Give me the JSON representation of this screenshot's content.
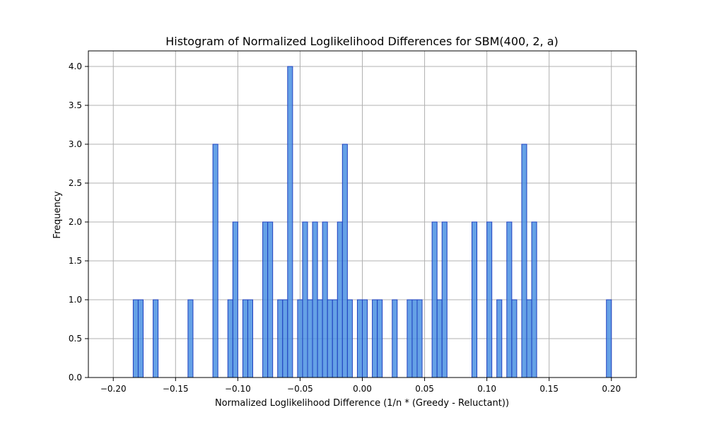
{
  "chart_data": {
    "type": "bar",
    "title": "Histogram of Normalized Loglikelihood Differences for SBM(400, 2, a)",
    "xlabel": "Normalized Loglikelihood Difference (1/n * (Greedy - Reluctant))",
    "ylabel": "Frequency",
    "xlim": [
      -0.22,
      0.22
    ],
    "ylim": [
      0,
      4.2
    ],
    "x_ticks": [
      -0.2,
      -0.15,
      -0.1,
      -0.05,
      0.0,
      0.05,
      0.1,
      0.15,
      0.2
    ],
    "x_tick_labels": [
      "−0.20",
      "−0.15",
      "−0.10",
      "−0.05",
      "0.00",
      "0.05",
      "0.10",
      "0.15",
      "0.20"
    ],
    "y_ticks": [
      0,
      0.5,
      1,
      1.5,
      2,
      2.5,
      3,
      3.5,
      4
    ],
    "y_tick_labels": [
      "0.0",
      "0.5",
      "1.0",
      "1.5",
      "2.0",
      "2.5",
      "3.0",
      "3.5",
      "4.0"
    ],
    "grid": true,
    "bin_range": [
      -0.2,
      0.2
    ],
    "bin_count": 100,
    "bar_color": "#4a90e2",
    "edge_color": "#1f3fbf",
    "bins": [
      {
        "x": -0.182,
        "count": 1
      },
      {
        "x": -0.178,
        "count": 1
      },
      {
        "x": -0.166,
        "count": 1
      },
      {
        "x": -0.138,
        "count": 1
      },
      {
        "x": -0.118,
        "count": 3
      },
      {
        "x": -0.106,
        "count": 1
      },
      {
        "x": -0.102,
        "count": 2
      },
      {
        "x": -0.094,
        "count": 1
      },
      {
        "x": -0.09,
        "count": 1
      },
      {
        "x": -0.078,
        "count": 2
      },
      {
        "x": -0.074,
        "count": 2
      },
      {
        "x": -0.066,
        "count": 1
      },
      {
        "x": -0.062,
        "count": 1
      },
      {
        "x": -0.058,
        "count": 4
      },
      {
        "x": -0.05,
        "count": 1
      },
      {
        "x": -0.046,
        "count": 2
      },
      {
        "x": -0.042,
        "count": 1
      },
      {
        "x": -0.038,
        "count": 2
      },
      {
        "x": -0.034,
        "count": 1
      },
      {
        "x": -0.03,
        "count": 2
      },
      {
        "x": -0.026,
        "count": 1
      },
      {
        "x": -0.022,
        "count": 1
      },
      {
        "x": -0.018,
        "count": 2
      },
      {
        "x": -0.014,
        "count": 3
      },
      {
        "x": -0.01,
        "count": 1
      },
      {
        "x": -0.002,
        "count": 1
      },
      {
        "x": 0.002,
        "count": 1
      },
      {
        "x": 0.01,
        "count": 1
      },
      {
        "x": 0.014,
        "count": 1
      },
      {
        "x": 0.026,
        "count": 1
      },
      {
        "x": 0.038,
        "count": 1
      },
      {
        "x": 0.042,
        "count": 1
      },
      {
        "x": 0.046,
        "count": 1
      },
      {
        "x": 0.058,
        "count": 2
      },
      {
        "x": 0.062,
        "count": 1
      },
      {
        "x": 0.066,
        "count": 2
      },
      {
        "x": 0.09,
        "count": 2
      },
      {
        "x": 0.102,
        "count": 2
      },
      {
        "x": 0.11,
        "count": 1
      },
      {
        "x": 0.118,
        "count": 2
      },
      {
        "x": 0.122,
        "count": 1
      },
      {
        "x": 0.13,
        "count": 3
      },
      {
        "x": 0.134,
        "count": 1
      },
      {
        "x": 0.138,
        "count": 2
      },
      {
        "x": 0.198,
        "count": 1
      }
    ]
  }
}
